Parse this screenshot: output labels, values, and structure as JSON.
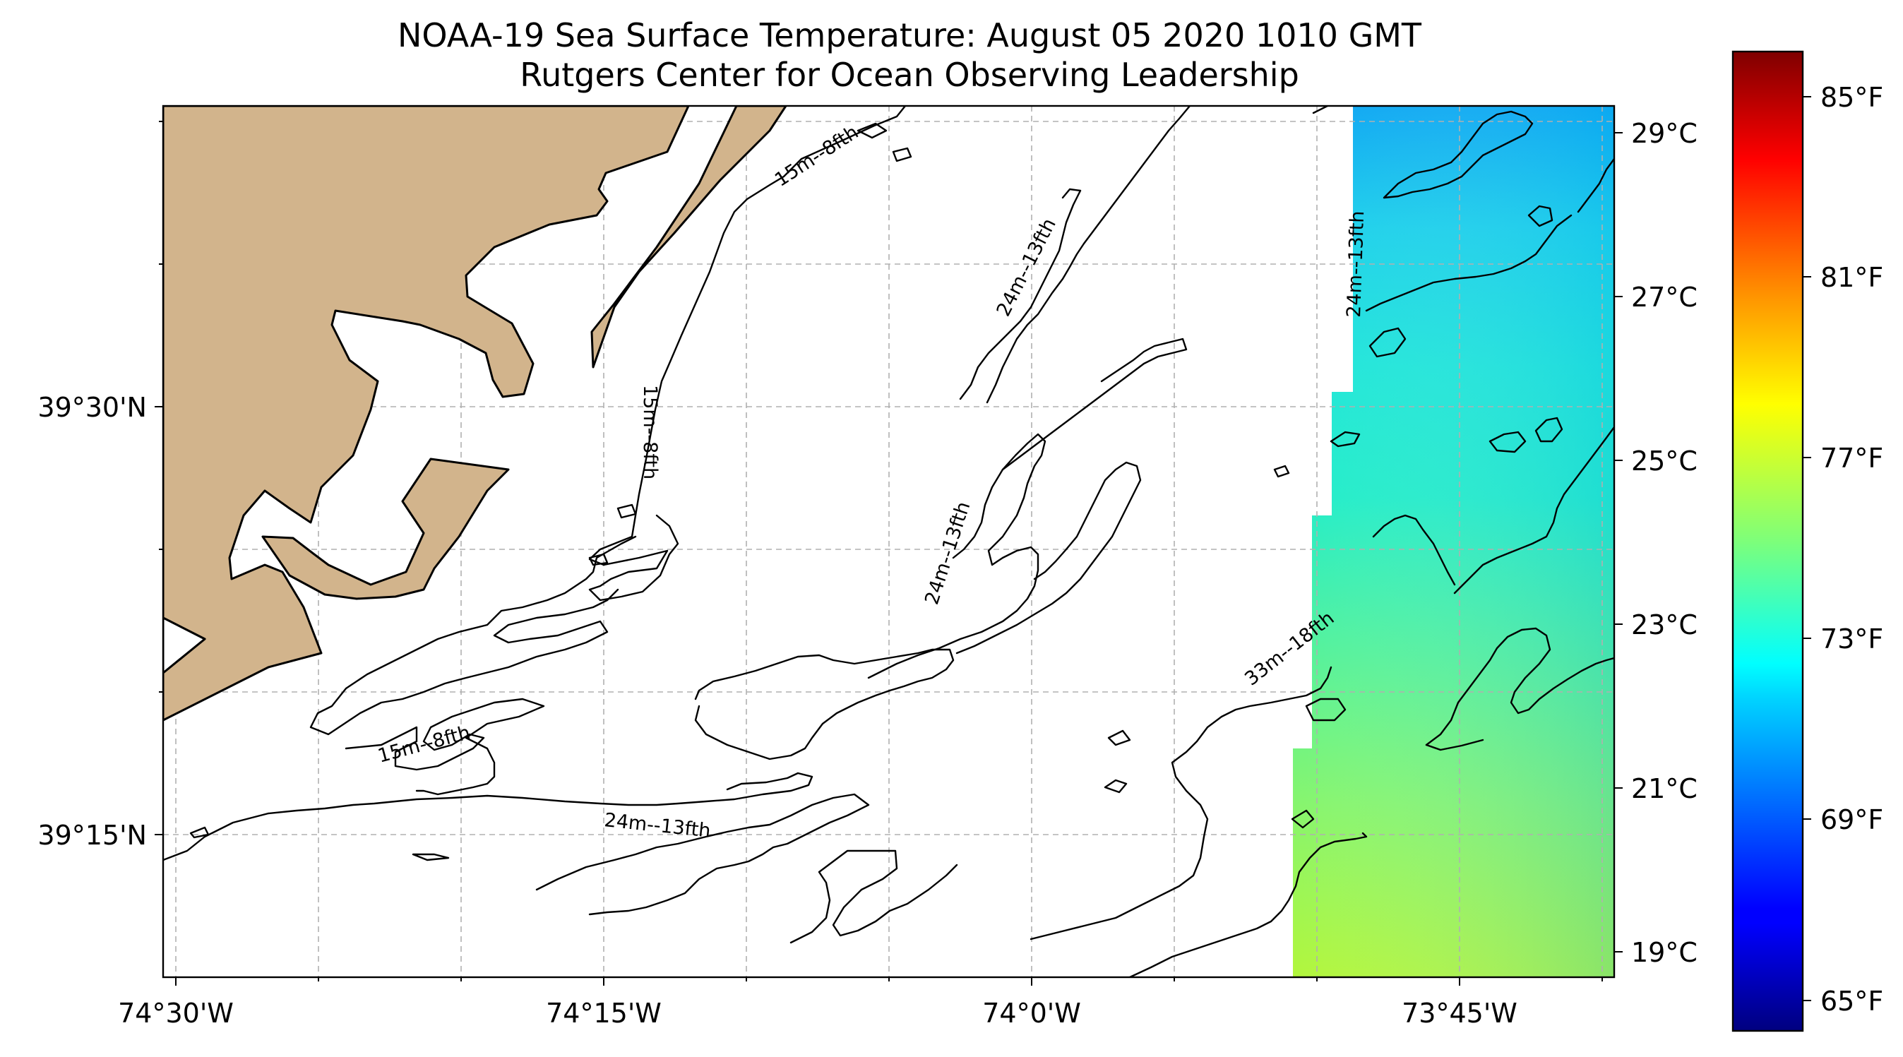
{
  "title": {
    "line1": "NOAA-19 Sea Surface Temperature: August 05 2020 1010 GMT",
    "line2": "Rutgers Center for Ocean Observing Leadership"
  },
  "map": {
    "longitude_labels": [
      "74°30'W",
      "74°15'W",
      "74°0'W",
      "73°45'W"
    ],
    "latitude_labels": [
      "39°30'N",
      "39°15'N"
    ],
    "land_color": "#d2b48c",
    "water_color": "#ffffff",
    "contour_labels": [
      {
        "text": "15m--8fth",
        "isobath": "15m"
      },
      {
        "text": "15m--8fth",
        "isobath": "15m"
      },
      {
        "text": "15m--8fth",
        "isobath": "15m"
      },
      {
        "text": "24m--13fth",
        "isobath": "24m"
      },
      {
        "text": "24m--13fth",
        "isobath": "24m"
      },
      {
        "text": "24m--13fth",
        "isobath": "24m"
      },
      {
        "text": "24m--13fth",
        "isobath": "24m"
      },
      {
        "text": "33m--18fth",
        "isobath": "33m"
      }
    ]
  },
  "colorbar": {
    "colormap": "jet",
    "celsius_labels": [
      "29°C",
      "27°C",
      "25°C",
      "23°C",
      "21°C",
      "19°C"
    ],
    "fahrenheit_labels": [
      "85°F",
      "81°F",
      "77°F",
      "73°F",
      "69°F",
      "65°F"
    ]
  }
}
